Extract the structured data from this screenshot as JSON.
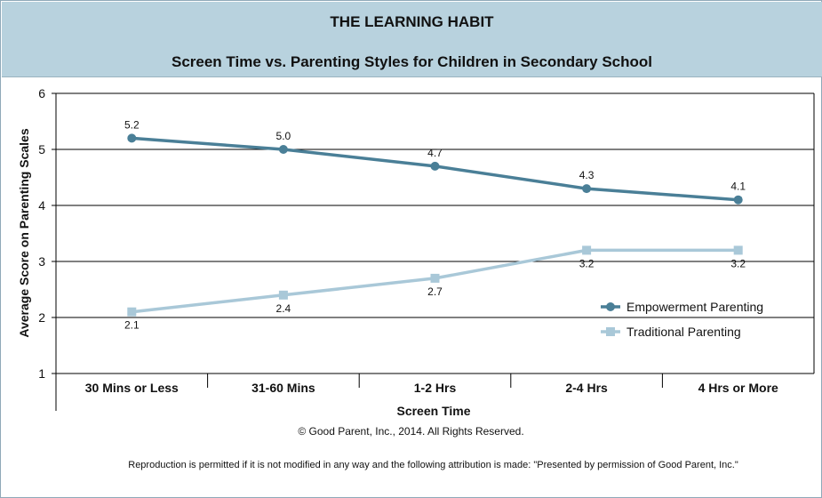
{
  "header": {
    "title": "THE LEARNING HABIT",
    "subtitle": "Screen Time vs. Parenting Styles for Children in Secondary School"
  },
  "chart_data": {
    "type": "line",
    "title": "Screen Time vs. Parenting Styles for Children in Secondary School",
    "xlabel": "Screen Time",
    "ylabel": "Average Score on Parenting Scales",
    "ylim": [
      1,
      6
    ],
    "yticks": [
      1,
      2,
      3,
      4,
      5,
      6
    ],
    "grid": true,
    "legend_position": "bottom-right",
    "categories": [
      "30 Mins or Less",
      "31-60 Mins",
      "1-2 Hrs",
      "2-4 Hrs",
      "4 Hrs or More"
    ],
    "series": [
      {
        "name": "Empowerment Parenting",
        "values": [
          5.2,
          5.0,
          4.7,
          4.3,
          4.1
        ],
        "labels": [
          "5.2",
          "5.0",
          "4.7",
          "4.3",
          "4.1"
        ],
        "color": "#4a7f97",
        "marker": "circle"
      },
      {
        "name": "Traditional Parenting",
        "values": [
          2.1,
          2.4,
          2.7,
          3.2,
          3.2
        ],
        "labels": [
          "2.1",
          "2.4",
          "2.7",
          "3.2",
          "3.2"
        ],
        "color": "#a9c8d8",
        "marker": "square"
      }
    ]
  },
  "footer": {
    "copyright": "© Good Parent, Inc., 2014. All Rights Reserved.",
    "reproduction": "Reproduction is permitted if it is not modified in any way and the following attribution is made: \"Presented by permission of Good Parent, Inc.\""
  }
}
